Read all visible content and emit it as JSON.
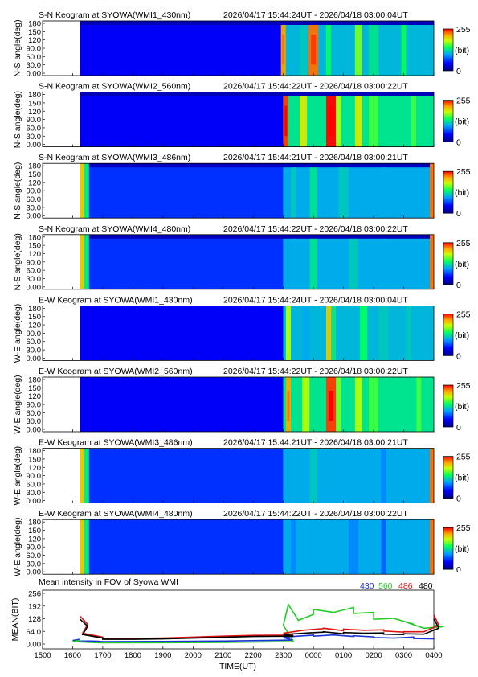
{
  "chart_data": [
    {
      "type": "heatmap",
      "title": "S-N Keogram at SYOWA(WMI1_430nm)",
      "time_range": "2026/04/17 15:44:24UT - 2026/04/18 03:00:04UT",
      "ylabel": "N-S angle(deg)",
      "yticks": [
        "180",
        "150",
        "120",
        "90.0",
        "60.0",
        "30.0",
        "0.00"
      ],
      "colorbar": {
        "max": "255",
        "unit": "(bit)",
        "min": "0"
      },
      "xlim": [
        1500,
        2800
      ],
      "data_start": 1575,
      "data_end": 2800,
      "active_start": 2300,
      "bands": [
        {
          "x": 2300,
          "level": 0.85
        },
        {
          "x": 2340,
          "level": 0.45
        },
        {
          "x": 2400,
          "level": 0.9
        },
        {
          "x": 2430,
          "level": 0.55
        },
        {
          "x": 2530,
          "level": 0.65
        },
        {
          "x": 2600,
          "level": 0.5
        },
        {
          "x": 2700,
          "level": 0.55
        }
      ]
    },
    {
      "type": "heatmap",
      "title": "S-N Keogram at SYOWA(WMI2_560nm)",
      "time_range": "2026/04/17 15:44:22UT - 2026/04/18 03:00:22UT",
      "ylabel": "N-S angle(deg)",
      "yticks": [
        "180",
        "150",
        "120",
        "90.0",
        "60.0",
        "30.0",
        "0.00"
      ],
      "colorbar": {
        "max": "255",
        "unit": "(bit)",
        "min": "0"
      },
      "xlim": [
        1500,
        2800
      ],
      "data_start": 1575,
      "data_end": 2800,
      "active_start": 2300,
      "bands": [
        {
          "x": 2305,
          "level": 0.95
        },
        {
          "x": 2340,
          "level": 0.75
        },
        {
          "x": 2395,
          "level": 1.0
        },
        {
          "x": 2450,
          "level": 0.7
        },
        {
          "x": 2530,
          "level": 0.75
        },
        {
          "x": 2600,
          "level": 0.6
        },
        {
          "x": 2680,
          "level": 0.6
        }
      ]
    },
    {
      "type": "heatmap",
      "title": "S-N Keogram at SYOWA(WMI3_486nm)",
      "time_range": "2026/04/17 15:44:21UT - 2026/04/18 03:00:21UT",
      "ylabel": "N-S angle(deg)",
      "yticks": [
        "180",
        "150",
        "120",
        "90.0",
        "60.0",
        "30.0",
        "0.00"
      ],
      "colorbar": {
        "max": "255",
        "unit": "(bit)",
        "min": "0"
      },
      "xlim": [
        1500,
        2800
      ],
      "data_start": 1575,
      "data_end": 2800,
      "active_start": 2300,
      "bands": [
        {
          "x": 2320,
          "level": 0.45
        },
        {
          "x": 2400,
          "level": 0.5
        },
        {
          "x": 2500,
          "level": 0.45
        },
        {
          "x": 2620,
          "level": 0.4
        }
      ]
    },
    {
      "type": "heatmap",
      "title": "S-N Keogram at SYOWA(WMI4_480nm)",
      "time_range": "2026/04/17 15:44:22UT - 2026/04/18 03:00:22UT",
      "ylabel": "N-S angle(deg)",
      "yticks": [
        "180",
        "150",
        "120",
        "90.0",
        "60.0",
        "30.0",
        "0.00"
      ],
      "colorbar": {
        "max": "255",
        "unit": "(bit)",
        "min": "0"
      },
      "xlim": [
        1500,
        2800
      ],
      "data_start": 1575,
      "data_end": 2800,
      "active_start": 2300,
      "bands": [
        {
          "x": 2320,
          "level": 0.4
        },
        {
          "x": 2400,
          "level": 0.5
        },
        {
          "x": 2520,
          "level": 0.45
        },
        {
          "x": 2620,
          "level": 0.4
        }
      ]
    },
    {
      "type": "heatmap",
      "title": "E-W Keogram at SYOWA(WMI1_430nm)",
      "time_range": "2026/04/17 15:44:24UT - 2026/04/18 03:00:04UT",
      "ylabel": "W-E angle(deg)",
      "yticks": [
        "180",
        "150",
        "120",
        "90.0",
        "60.0",
        "30.0",
        "0.00"
      ],
      "colorbar": {
        "max": "255",
        "unit": "(bit)",
        "min": "0"
      },
      "xlim": [
        1500,
        2800
      ],
      "data_start": 1575,
      "data_end": 2800,
      "active_start": 2300,
      "bands": [
        {
          "x": 2310,
          "level": 0.7
        },
        {
          "x": 2345,
          "level": 0.4
        },
        {
          "x": 2395,
          "level": 0.8
        },
        {
          "x": 2440,
          "level": 0.5
        },
        {
          "x": 2540,
          "level": 0.55
        },
        {
          "x": 2620,
          "level": 0.45
        },
        {
          "x": 2710,
          "level": 0.45
        }
      ]
    },
    {
      "type": "heatmap",
      "title": "E-W Keogram at SYOWA(WMI2_560nm)",
      "time_range": "2026/04/17 15:44:22UT - 2026/04/18 03:00:22UT",
      "ylabel": "W-E angle(deg)",
      "yticks": [
        "180",
        "150",
        "120",
        "90.0",
        "60.0",
        "30.0",
        "0.00"
      ],
      "colorbar": {
        "max": "255",
        "unit": "(bit)",
        "min": "0"
      },
      "xlim": [
        1500,
        2800
      ],
      "data_start": 1575,
      "data_end": 2800,
      "active_start": 2300,
      "bands": [
        {
          "x": 2310,
          "level": 0.85
        },
        {
          "x": 2345,
          "level": 0.7
        },
        {
          "x": 2395,
          "level": 0.95
        },
        {
          "x": 2450,
          "level": 0.65
        },
        {
          "x": 2530,
          "level": 0.7
        },
        {
          "x": 2600,
          "level": 0.6
        },
        {
          "x": 2690,
          "level": 0.6
        }
      ]
    },
    {
      "type": "heatmap",
      "title": "E-W Keogram at SYOWA(WMI3_486nm)",
      "time_range": "2026/04/17 15:44:21UT - 2026/04/18 03:00:21UT",
      "ylabel": "W-E angle(deg)",
      "yticks": [
        "180",
        "150",
        "120",
        "90.0",
        "60.0",
        "30.0",
        "0.00"
      ],
      "colorbar": {
        "max": "255",
        "unit": "(bit)",
        "min": "0"
      },
      "xlim": [
        1500,
        2800
      ],
      "data_start": 1575,
      "data_end": 2800,
      "active_start": 2300,
      "bands": [
        {
          "x": 2320,
          "level": 0.4
        },
        {
          "x": 2400,
          "level": 0.45
        },
        {
          "x": 2500,
          "level": 0.4
        },
        {
          "x": 2620,
          "level": 0.35
        }
      ]
    },
    {
      "type": "heatmap",
      "title": "E-W Keogram at SYOWA(WMI4_480nm)",
      "time_range": "2026/04/17 15:44:22UT - 2026/04/18 03:00:22UT",
      "ylabel": "W-E angle(deg)",
      "yticks": [
        "180",
        "150",
        "120",
        "90.0",
        "60.0",
        "30.0",
        "0.00"
      ],
      "colorbar": {
        "max": "255",
        "unit": "(bit)",
        "min": "0"
      },
      "xlim": [
        1500,
        2800
      ],
      "data_start": 1575,
      "data_end": 2800,
      "active_start": 2300,
      "bands": [
        {
          "x": 2320,
          "level": 0.35
        },
        {
          "x": 2400,
          "level": 0.4
        },
        {
          "x": 2520,
          "level": 0.35
        },
        {
          "x": 2620,
          "level": 0.3
        }
      ]
    },
    {
      "type": "line",
      "title": "Mean intensity in FOV of Syowa WMI",
      "xlabel": "TIME(UT)",
      "ylabel": "MEAN(BIT)",
      "ylim": [
        0,
        256
      ],
      "yticks": [
        "256",
        "192",
        "128",
        "64.0",
        "0.00"
      ],
      "xticks": [
        "1500",
        "1600",
        "1700",
        "1800",
        "1900",
        "2000",
        "2100",
        "2200",
        "2300",
        "0000",
        "0100",
        "0200",
        "0300",
        "0400"
      ],
      "series": [
        {
          "name": "430",
          "color": "#1a33d6",
          "x": [
            1575,
            1600,
            1650,
            1700,
            1900,
            2100,
            2280,
            2300,
            2320,
            2360,
            2400,
            2440,
            2480,
            2520,
            2560,
            2600,
            2640,
            2680,
            2720,
            2760,
            2800
          ],
          "y": [
            24,
            18,
            14,
            12,
            13,
            15,
            20,
            32,
            38,
            45,
            40,
            46,
            38,
            42,
            36,
            33,
            30,
            35,
            28,
            26,
            30
          ]
        },
        {
          "name": "560",
          "color": "#22cc22",
          "x": [
            1575,
            1600,
            1650,
            1700,
            1900,
            2100,
            2280,
            2300,
            2310,
            2330,
            2360,
            2400,
            2440,
            2480,
            2520,
            2560,
            2600,
            2640,
            2680,
            2700,
            2740,
            2780,
            2800
          ],
          "y": [
            20,
            12,
            7,
            6,
            7,
            8,
            12,
            95,
            200,
            120,
            150,
            175,
            160,
            185,
            155,
            160,
            125,
            130,
            100,
            115,
            80,
            88,
            95
          ]
        },
        {
          "name": "486",
          "color": "#dd1111",
          "x": [
            1575,
            1590,
            1620,
            1660,
            1700,
            1800,
            1900,
            2000,
            2100,
            2200,
            2280,
            2300,
            2340,
            2380,
            2420,
            2460,
            2500,
            2540,
            2580,
            2620,
            2660,
            2700,
            2740,
            2770,
            2800
          ],
          "y": [
            140,
            100,
            55,
            35,
            28,
            28,
            30,
            35,
            40,
            44,
            45,
            55,
            70,
            78,
            80,
            68,
            75,
            70,
            72,
            66,
            60,
            62,
            62,
            95,
            148
          ]
        },
        {
          "name": "480",
          "color": "#000000",
          "x": [
            1575,
            1590,
            1620,
            1660,
            1700,
            1800,
            1900,
            2000,
            2100,
            2200,
            2280,
            2300,
            2340,
            2380,
            2420,
            2460,
            2500,
            2540,
            2580,
            2620,
            2660,
            2700,
            2740,
            2770,
            2800
          ],
          "y": [
            125,
            90,
            48,
            30,
            24,
            24,
            26,
            30,
            34,
            38,
            40,
            48,
            55,
            60,
            62,
            52,
            58,
            55,
            56,
            50,
            48,
            52,
            50,
            80,
            128
          ]
        }
      ]
    }
  ]
}
